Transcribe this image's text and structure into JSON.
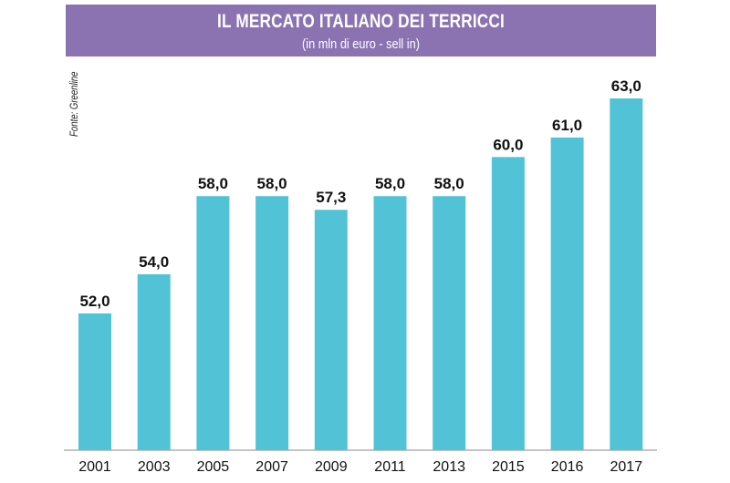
{
  "header": {
    "title": "IL MERCATO ITALIANO DEI TERRICCI",
    "subtitle": "(in mln di euro - sell in)"
  },
  "source": "Fonte: Greenline",
  "colors": {
    "header_bg": "#8b73b2",
    "bar": "#52c3d6",
    "axis": "#888888"
  },
  "chart_data": {
    "type": "bar",
    "title": "IL MERCATO ITALIANO DEI TERRICCI",
    "subtitle": "(in mln di euro - sell in)",
    "categories": [
      "2001",
      "2003",
      "2005",
      "2007",
      "2009",
      "2011",
      "2013",
      "2015",
      "2016",
      "2017"
    ],
    "values": [
      52.0,
      54.0,
      58.0,
      58.0,
      57.3,
      58.0,
      58.0,
      60.0,
      61.0,
      63.0
    ],
    "value_labels": [
      "52,0",
      "54,0",
      "58,0",
      "58,0",
      "57,3",
      "58,0",
      "58,0",
      "60,0",
      "61,0",
      "63,0"
    ],
    "xlabel": "",
    "ylabel": "",
    "ylim": [
      45,
      63
    ],
    "grid": false,
    "legend": "none"
  }
}
